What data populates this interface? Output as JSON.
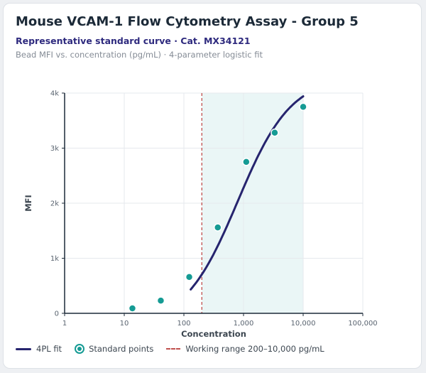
{
  "header": {
    "title": "Mouse VCAM-1 Flow Cytometry Assay - Group 5",
    "subtitle": "Representative standard curve · Cat. MX34121",
    "caption": "Bead MFI vs. concentration (pg/mL) · 4-parameter logistic fit"
  },
  "legend": {
    "fit_label": "4PL fit",
    "points_label": "Standard points",
    "range_label": "Working range 200–10,000 pg/mL"
  },
  "colors": {
    "fit": "#26246e",
    "points": "#159b94",
    "range_line": "#c0504d",
    "range_fill": "#eaf6f6",
    "axis": "#1c2a38",
    "grid": "#e6e9ed"
  },
  "chart_data": {
    "type": "scatter",
    "xscale": "log",
    "xlim": [
      1,
      100000
    ],
    "ylim": [
      0,
      4000
    ],
    "xlabel": "Concentration",
    "ylabel": "MFI",
    "x_ticks": [
      1,
      10,
      100,
      1000,
      10000,
      100000
    ],
    "x_tick_labels": [
      "1",
      "10",
      "100",
      "1,000",
      "10,000",
      "100,000"
    ],
    "y_ticks": [
      0,
      1000,
      2000,
      3000,
      4000
    ],
    "y_tick_labels": [
      "0",
      "1k",
      "2k",
      "3k",
      "4k"
    ],
    "grid": true,
    "series": [
      {
        "name": "Standard points",
        "points": [
          {
            "x": 13.7,
            "y": 90
          },
          {
            "x": 41,
            "y": 230
          },
          {
            "x": 123,
            "y": 660
          },
          {
            "x": 370,
            "y": 1560
          },
          {
            "x": 1111,
            "y": 2750
          },
          {
            "x": 3333,
            "y": 3280
          },
          {
            "x": 10000,
            "y": 3750
          }
        ]
      },
      {
        "name": "4PL fit",
        "fit_4pl": {
          "bottom": -230,
          "top": 4300,
          "ec50": 800,
          "hill": 0.97
        },
        "x_range": [
          130,
          10000
        ]
      }
    ],
    "working_range": [
      200,
      10000
    ]
  }
}
